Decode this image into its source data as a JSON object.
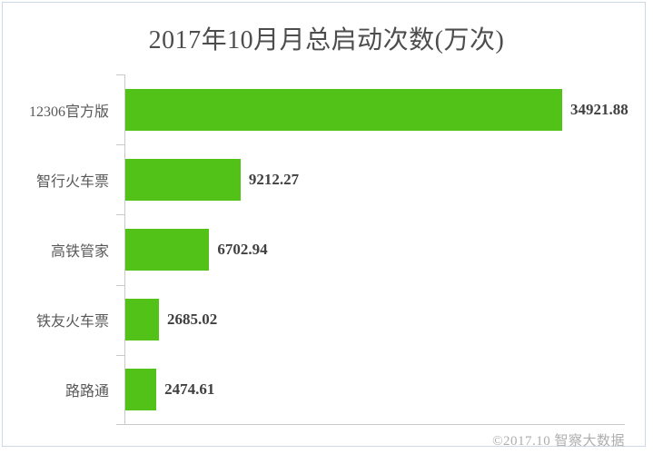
{
  "page": {
    "footer": "©2017.10 智察大数据"
  },
  "colors": {
    "bar": "#52c118",
    "axis": "#c9c9c9",
    "title_text": "#4d4d4d",
    "category_text": "#595959",
    "value_text": "#404040",
    "footer_text": "#aeaeae",
    "frame_border": "#cdd8e8"
  },
  "chart_data": {
    "type": "bar",
    "orientation": "horizontal",
    "title": "2017年10月月总启动次数(万次)",
    "categories": [
      "12306官方版",
      "智行火车票",
      "高铁管家",
      "铁友火车票",
      "路路通"
    ],
    "values": [
      34921.88,
      9212.27,
      6702.94,
      2685.02,
      2474.61
    ],
    "value_labels": [
      "34921.88",
      "9212.27",
      "6702.94",
      "2685.02",
      "2474.61"
    ],
    "xlabel": "",
    "ylabel": "",
    "xlim": [
      0,
      40000
    ],
    "unit": "万次",
    "grid": false,
    "legend": false,
    "value_labels_position": "outside-end"
  }
}
